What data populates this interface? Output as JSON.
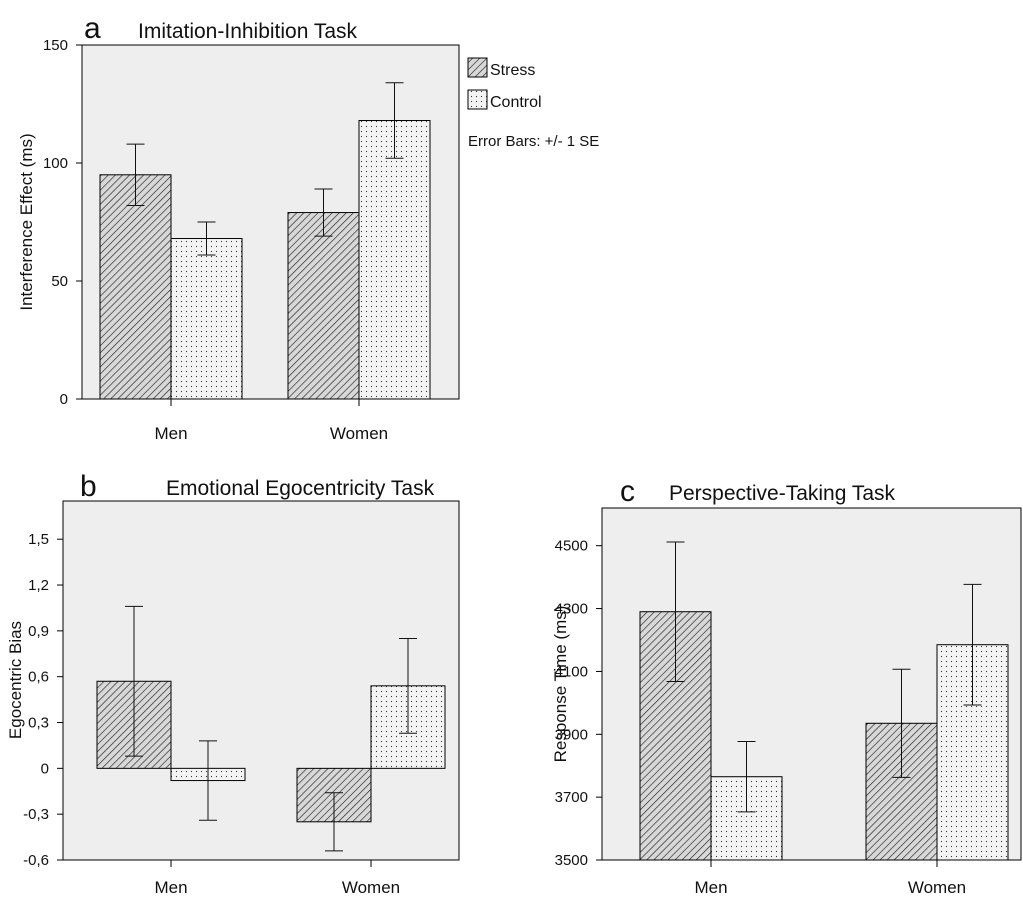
{
  "legend": {
    "items": [
      {
        "label": "Stress",
        "pattern": "stress"
      },
      {
        "label": "Control",
        "pattern": "control"
      }
    ],
    "note": "Error Bars: +/- 1 SE",
    "position": "right"
  },
  "chart_data": [
    {
      "type": "bar",
      "panel_letter": "a",
      "title": "Imitation-Inhibition Task",
      "ylabel": "Interference Effect (ms)",
      "xlabel": "",
      "categories": [
        "Men",
        "Women"
      ],
      "ylim": [
        0,
        150
      ],
      "yticks": [
        0,
        50,
        100,
        150
      ],
      "ytick_labels": [
        "0",
        "50",
        "100",
        "150"
      ],
      "grid": false,
      "series": [
        {
          "name": "Stress",
          "values": [
            95,
            79
          ],
          "se": [
            13,
            10
          ]
        },
        {
          "name": "Control",
          "values": [
            68,
            118
          ],
          "se": [
            7,
            16
          ]
        }
      ]
    },
    {
      "type": "bar",
      "panel_letter": "b",
      "title": "Emotional Egocentricity Task",
      "ylabel": "Egocentric Bias",
      "xlabel": "",
      "categories": [
        "Men",
        "Women"
      ],
      "ylim": [
        -0.6,
        1.75
      ],
      "yticks": [
        -0.6,
        -0.3,
        0,
        0.3,
        0.6,
        0.9,
        1.2,
        1.5
      ],
      "ytick_labels": [
        "-0,6",
        "-0,3",
        "0",
        "0,3",
        "0,6",
        "0,9",
        "1,2",
        "1,5"
      ],
      "grid": false,
      "series": [
        {
          "name": "Stress",
          "values": [
            0.57,
            -0.35
          ],
          "se": [
            0.49,
            0.19
          ]
        },
        {
          "name": "Control",
          "values": [
            -0.08,
            0.54
          ],
          "se": [
            0.26,
            0.31
          ]
        }
      ]
    },
    {
      "type": "bar",
      "panel_letter": "c",
      "title": "Perspective-Taking Task",
      "ylabel": "Response Time (ms)",
      "xlabel": "",
      "categories": [
        "Men",
        "Women"
      ],
      "ylim": [
        3500,
        4620
      ],
      "yticks": [
        3500,
        3700,
        3900,
        4100,
        4300,
        4500
      ],
      "ytick_labels": [
        "3500",
        "3700",
        "3900",
        "4100",
        "4300",
        "4500"
      ],
      "grid": false,
      "series": [
        {
          "name": "Stress",
          "values": [
            4290,
            3935
          ],
          "se": [
            222,
            172
          ]
        },
        {
          "name": "Control",
          "values": [
            3765,
            4185
          ],
          "se": [
            112,
            192
          ]
        }
      ]
    }
  ]
}
